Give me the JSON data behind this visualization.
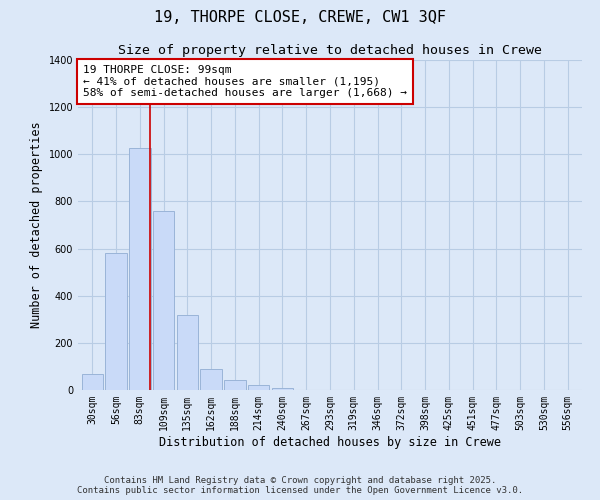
{
  "title": "19, THORPE CLOSE, CREWE, CW1 3QF",
  "subtitle": "Size of property relative to detached houses in Crewe",
  "xlabel": "Distribution of detached houses by size in Crewe",
  "ylabel": "Number of detached properties",
  "bin_labels": [
    "30sqm",
    "56sqm",
    "83sqm",
    "109sqm",
    "135sqm",
    "162sqm",
    "188sqm",
    "214sqm",
    "240sqm",
    "267sqm",
    "293sqm",
    "319sqm",
    "346sqm",
    "372sqm",
    "398sqm",
    "425sqm",
    "451sqm",
    "477sqm",
    "503sqm",
    "530sqm",
    "556sqm"
  ],
  "bar_heights": [
    70,
    580,
    1025,
    760,
    320,
    90,
    42,
    20,
    8,
    2,
    0,
    0,
    0,
    0,
    0,
    0,
    0,
    0,
    0,
    0,
    0
  ],
  "bar_color": "#c9daf8",
  "bar_edge_color": "#9ab4d8",
  "vline_color": "#cc0000",
  "annotation_text": "19 THORPE CLOSE: 99sqm\n← 41% of detached houses are smaller (1,195)\n58% of semi-detached houses are larger (1,668) →",
  "annotation_box_color": "#ffffff",
  "annotation_box_edge": "#cc0000",
  "ylim": [
    0,
    1400
  ],
  "yticks": [
    0,
    200,
    400,
    600,
    800,
    1000,
    1200,
    1400
  ],
  "bg_color": "#dce8f8",
  "grid_color": "#b8cce4",
  "footer1": "Contains HM Land Registry data © Crown copyright and database right 2025.",
  "footer2": "Contains public sector information licensed under the Open Government Licence v3.0.",
  "title_fontsize": 11,
  "subtitle_fontsize": 9.5,
  "axis_label_fontsize": 8.5,
  "tick_fontsize": 7,
  "annotation_fontsize": 8
}
